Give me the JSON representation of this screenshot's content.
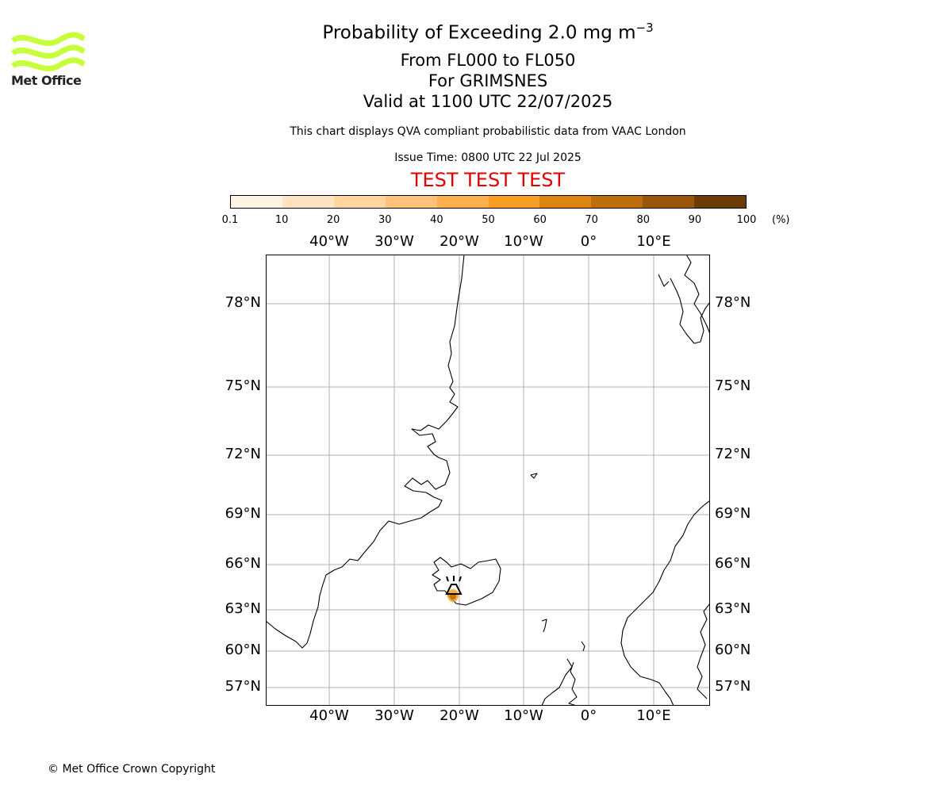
{
  "logo": {
    "text": "Met Office",
    "color": "#c8ff3c"
  },
  "title": {
    "line1_prefix": "Probability of Exceeding 2.0 mg m",
    "line1_sup": "−3",
    "line2": "From FL000 to FL050",
    "line3": "For GRIMSNES",
    "line4": "Valid at 1100 UTC 22/07/2025"
  },
  "subtitle": "This chart displays QVA compliant probabilistic data from VAAC London",
  "issue_time": "Issue Time: 0800 UTC 22 Jul 2025",
  "test_banner": "TEST TEST TEST",
  "test_color": "#e00000",
  "colorbar": {
    "ticks": [
      "0.1",
      "10",
      "20",
      "30",
      "40",
      "50",
      "60",
      "70",
      "80",
      "90",
      "100"
    ],
    "unit": "(%)",
    "colors": [
      "#fff4e3",
      "#ffe4c1",
      "#ffd49e",
      "#ffc27a",
      "#ffb04c",
      "#f99d23",
      "#dd8510",
      "#bd6d0b",
      "#9a560a",
      "#6b3c06"
    ]
  },
  "map": {
    "lon_labels": [
      "40°W",
      "30°W",
      "20°W",
      "10°W",
      "0°",
      "10°E"
    ],
    "lat_labels": [
      "78°N",
      "75°N",
      "72°N",
      "69°N",
      "66°N",
      "63°N",
      "60°N",
      "57°N"
    ],
    "volcano_name_icon": "volcano-icon"
  },
  "copyright": "© Met Office Crown Copyright"
}
